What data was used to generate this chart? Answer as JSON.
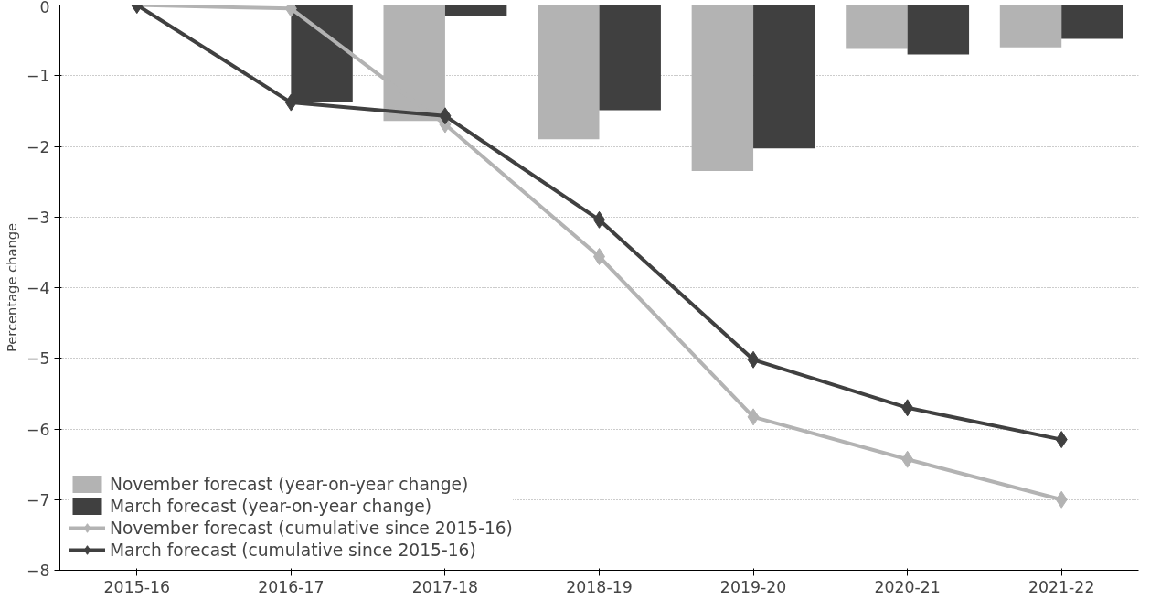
{
  "chart_data": {
    "type": "bar",
    "ylabel": "Percentage change",
    "categories": [
      "2015-16",
      "2016-17",
      "2017-18",
      "2018-19",
      "2019-20",
      "2020-21",
      "2021-22"
    ],
    "ylim": [
      -8,
      0
    ],
    "yticks": [
      -8,
      -7,
      -6,
      -5,
      -4,
      -3,
      -2,
      -1,
      0
    ],
    "grid": "y",
    "legend": "bottom left",
    "marker": "diamond",
    "series": [
      {
        "name": "November forecast (year-on-year change)",
        "color": "#b3b3b3",
        "values": [
          null,
          null,
          -1.64,
          -1.9,
          -2.35,
          -0.62,
          -0.6
        ]
      },
      {
        "name": "March forecast (year-on-year change)",
        "color": "#404040",
        "values": [
          null,
          -1.37,
          -0.16,
          -1.49,
          -2.03,
          -0.7,
          -0.48
        ]
      },
      {
        "name": "November forecast (cumulative since 2015-16)",
        "type": "line",
        "color": "#b3b3b3",
        "values": [
          0,
          -0.05,
          -1.69,
          -3.56,
          -5.83,
          -6.43,
          -7.0
        ]
      },
      {
        "name": "March forecast (cumulative since 2015-16)",
        "type": "line",
        "color": "#404040",
        "values": [
          0,
          -1.38,
          -1.57,
          -3.04,
          -5.02,
          -5.7,
          -6.15
        ]
      }
    ]
  }
}
